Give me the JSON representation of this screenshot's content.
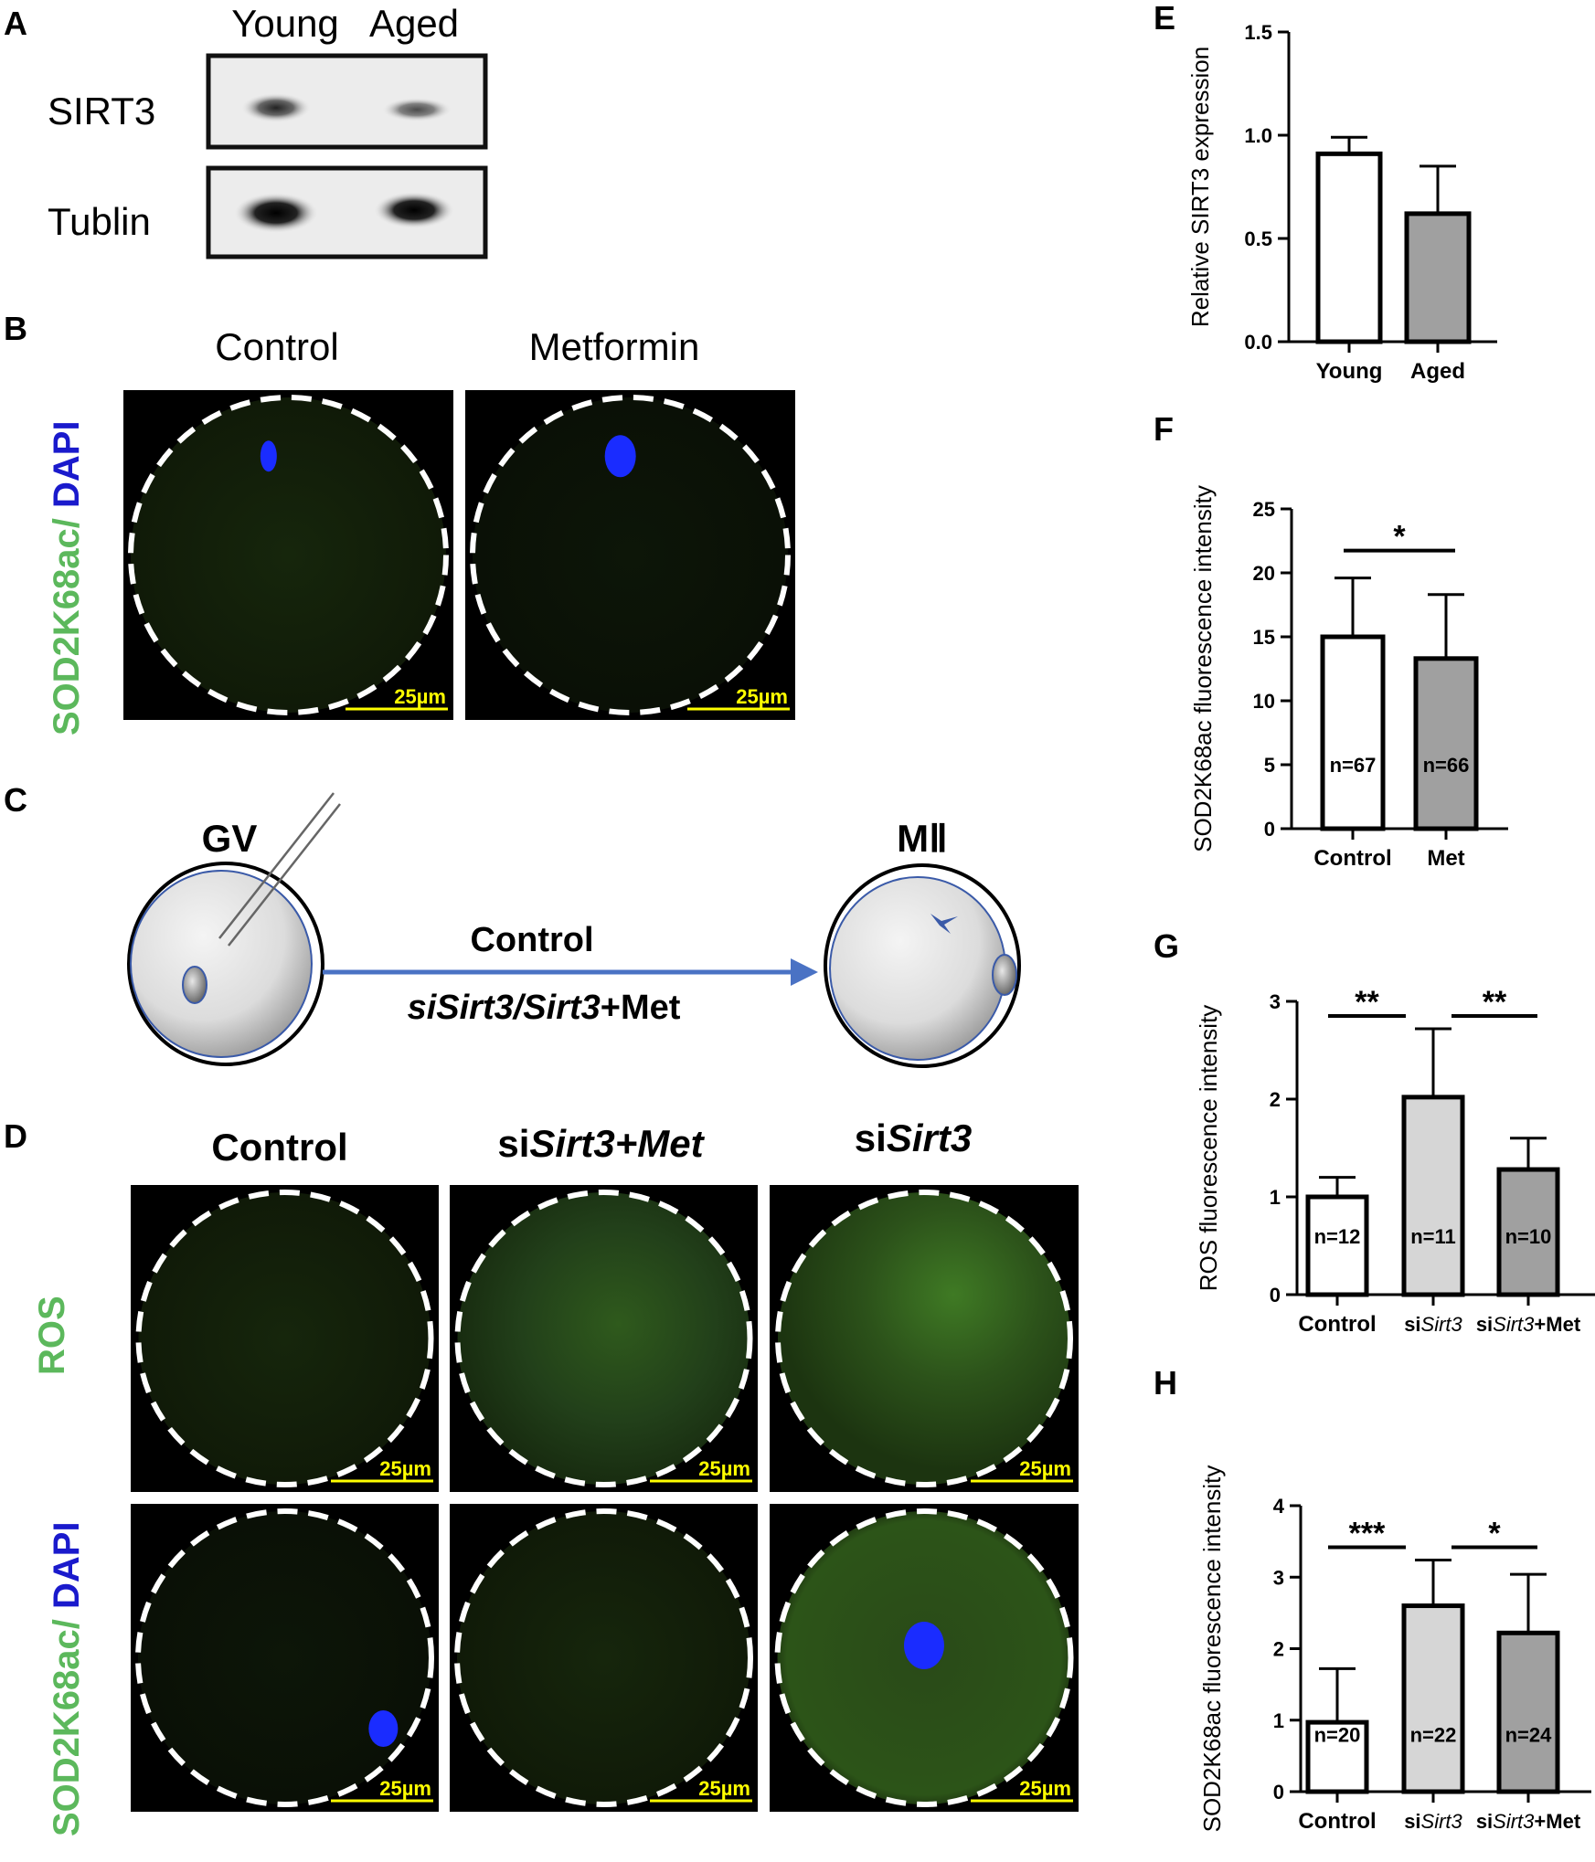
{
  "panel_labels": {
    "a": "A",
    "b": "B",
    "c": "C",
    "d": "D",
    "e": "E",
    "f": "F",
    "g": "G",
    "h": "H"
  },
  "panel_a": {
    "col_young": "Young",
    "col_aged": "Aged",
    "row_sirt3": "SIRT3",
    "row_tublin": "Tublin"
  },
  "panel_b": {
    "col_control": "Control",
    "col_metformin": "Metformin",
    "row_label_green": "SOD2K68ac/",
    "row_label_blue": " DAPI",
    "scale_bar": "25µm"
  },
  "panel_c": {
    "start_stage": "GV",
    "end_stage": "MⅡ",
    "arrow_top": "Control",
    "arrow_bottom_italic": "siSirt3/Sirt3",
    "arrow_bottom_plain": "+Met"
  },
  "panel_d": {
    "col1": "Control",
    "col2_prefix": "si",
    "col2_italic": "Sirt3+Met",
    "col3_prefix": "si",
    "col3_italic": "Sirt3",
    "row1_label": "ROS",
    "row2_label_green": "SOD2K68ac/",
    "row2_label_blue": " DAPI",
    "scale_bar": "25µm",
    "ros": [
      "low-dim",
      "medium-bright",
      "bright"
    ],
    "sod": [
      "dark",
      "faint",
      "medium-bright"
    ]
  },
  "colors": {
    "green_label": "#5cb85c",
    "blue_label": "#1a1acc",
    "yellow_scale": "#ffff00",
    "arrow": "#4a72c4",
    "bar_white": "#ffffff",
    "bar_light": "#d6d6d6",
    "bar_dark": "#a0a0a0"
  },
  "chart_data": [
    {
      "id": "E",
      "type": "bar",
      "ylabel": "Relative SIRT3 expression",
      "ylim": [
        0,
        1.5
      ],
      "ticks": [
        "0.0",
        "0.5",
        "1.0",
        "1.5"
      ],
      "tick_values": [
        0,
        0.5,
        1.0,
        1.5
      ],
      "categories": [
        "Young",
        "Aged"
      ],
      "values": [
        0.91,
        0.62
      ],
      "error_top": [
        0.99,
        0.85
      ],
      "n_labels": [],
      "significance": []
    },
    {
      "id": "F",
      "type": "bar",
      "ylabel": "SOD2K68ac fluorescence intensity",
      "ylim": [
        0,
        25
      ],
      "ticks": [
        "0",
        "5",
        "10",
        "15",
        "20",
        "25"
      ],
      "tick_values": [
        0,
        5,
        10,
        15,
        20,
        25
      ],
      "categories": [
        "Control",
        "Met"
      ],
      "values": [
        15.0,
        13.3
      ],
      "error_top": [
        19.6,
        18.3
      ],
      "n_labels": [
        "n=67",
        "n=66"
      ],
      "significance": [
        {
          "from": 0,
          "to": 1,
          "label": "*"
        }
      ]
    },
    {
      "id": "G",
      "type": "bar",
      "ylabel": "ROS fluorescence intensity",
      "ylim": [
        0,
        3
      ],
      "ticks": [
        "0",
        "1",
        "2",
        "3"
      ],
      "tick_values": [
        0,
        1,
        2,
        3
      ],
      "categories": [
        "Control",
        "siSirt3",
        "siSirt3+Met"
      ],
      "values": [
        1.0,
        2.02,
        1.28
      ],
      "error_top": [
        1.2,
        2.72,
        1.6
      ],
      "n_labels": [
        "n=12",
        "n=11",
        "n=10"
      ],
      "significance": [
        {
          "from": 0,
          "to": 1,
          "label": "**"
        },
        {
          "from": 1,
          "to": 2,
          "label": "**"
        }
      ]
    },
    {
      "id": "H",
      "type": "bar",
      "ylabel": "SOD2K68ac fluorescence intensity",
      "ylim": [
        0,
        4
      ],
      "ticks": [
        "0",
        "1",
        "2",
        "3",
        "4"
      ],
      "tick_values": [
        0,
        1,
        2,
        3,
        4
      ],
      "categories": [
        "Control",
        "siSirt3",
        "siSirt3+Met"
      ],
      "values": [
        0.97,
        2.6,
        2.22
      ],
      "error_top": [
        1.72,
        3.24,
        3.04
      ],
      "n_labels": [
        "n=20",
        "n=22",
        "n=24"
      ],
      "significance": [
        {
          "from": 0,
          "to": 1,
          "label": "***"
        },
        {
          "from": 1,
          "to": 2,
          "label": "*"
        }
      ]
    }
  ]
}
